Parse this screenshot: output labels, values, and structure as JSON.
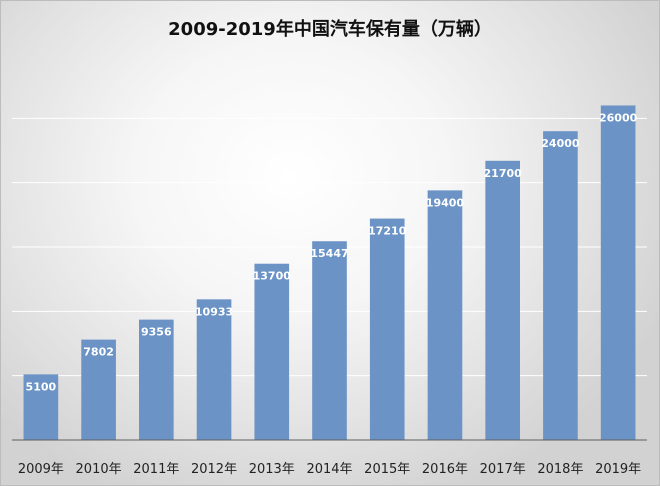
{
  "chart_data": {
    "type": "bar",
    "title": "2009-2019年中国汽车保有量（万辆）",
    "categories": [
      "2009年",
      "2010年",
      "2011年",
      "2012年",
      "2013年",
      "2014年",
      "2015年",
      "2016年",
      "2017年",
      "2018年",
      "2019年"
    ],
    "values": [
      5100,
      7802,
      9356,
      10933,
      13700,
      15447,
      17210,
      19400,
      21700,
      24000,
      26000
    ],
    "xlabel": "",
    "ylabel": "",
    "ylim": [
      0,
      30000
    ],
    "grid": true,
    "y_ticks_visible": false,
    "data_labels": "inside-top",
    "colors": {
      "bar": "#6b93c6",
      "label": "#ffffff",
      "grid": "#ffffff",
      "axis": "#5f5f5f"
    }
  }
}
